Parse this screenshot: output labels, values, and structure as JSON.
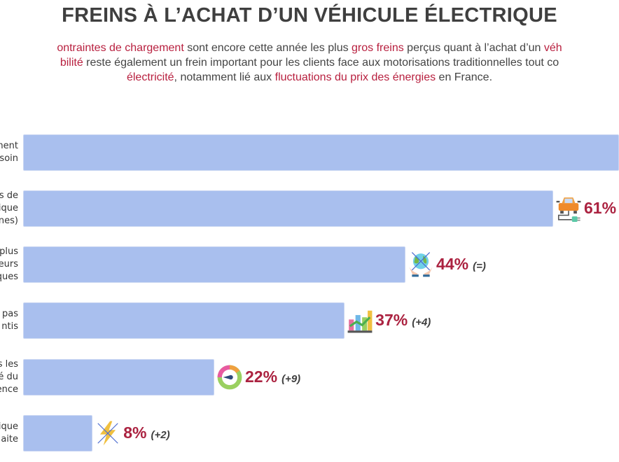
{
  "title": "FREINS À L’ACHAT D’UN VÉHICULE ÉLECTRIQUE",
  "intro": {
    "line1": [
      {
        "t": "ontraintes de chargement",
        "hl": true
      },
      {
        "t": " sont encore cette année les plus ",
        "hl": false
      },
      {
        "t": "gros freins",
        "hl": true
      },
      {
        "t": " perçus quant à l’achat d’un ",
        "hl": false
      },
      {
        "t": "véh",
        "hl": true
      }
    ],
    "line2": [
      {
        "t": "bilité",
        "hl": true
      },
      {
        "t": " reste également un frein important pour les clients face aux motorisations traditionnelles tout co",
        "hl": false
      }
    ],
    "line3": [
      {
        "t": "électricité",
        "hl": true
      },
      {
        "t": ", notamment lié aux ",
        "hl": false
      },
      {
        "t": "fluctuations du prix des énergies",
        "hl": true
      },
      {
        "t": " en France.",
        "hl": false
      }
    ]
  },
  "colors": {
    "bar": "#a9bfee",
    "accent": "#ab2240",
    "title": "#3f3f3f"
  },
  "chart_data": {
    "type": "bar",
    "orientation": "horizontal",
    "categories": [
      [
        "ment",
        "soin"
      ],
      [
        "s de",
        "ique",
        "nes)"
      ],
      [
        "plus",
        "eurs",
        "ques"
      ],
      [
        "pas",
        "ntis"
      ],
      [
        "s les",
        "é du",
        "ence"
      ],
      [
        "ique",
        "aite"
      ]
    ],
    "values": [
      null,
      61,
      44,
      37,
      22,
      8
    ],
    "value_labels": [
      "",
      "61%",
      "44%",
      "37%",
      "22%",
      "8%"
    ],
    "changes": [
      "",
      "",
      "(=)",
      "(+4)",
      "(+9)",
      "(+2)"
    ],
    "icons": [
      "",
      "car-charging-icon",
      "earth-crossed-hands-icon",
      "growth-chart-icon",
      "gauge-icon",
      "lightning-crossed-icon"
    ],
    "unit": "%",
    "xlim": [
      0,
      100
    ]
  }
}
